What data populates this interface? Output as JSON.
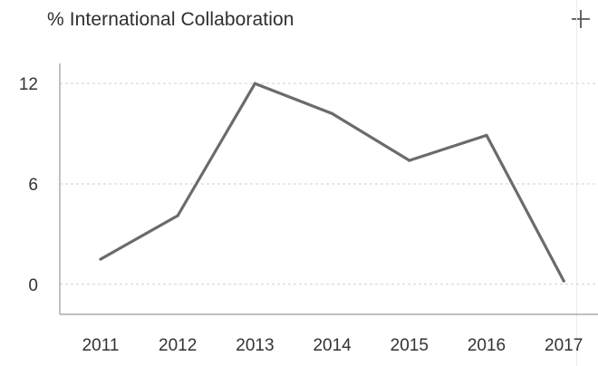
{
  "chart_data": {
    "type": "line",
    "title": "% International Collaboration",
    "x": [
      "2011",
      "2012",
      "2013",
      "2014",
      "2015",
      "2016",
      "2017"
    ],
    "series": [
      {
        "values": [
          1.5,
          4.1,
          12.0,
          10.2,
          7.4,
          8.9,
          0.2
        ]
      }
    ],
    "yticks": [
      0,
      6,
      12
    ],
    "ylim": [
      -1.8,
      13.2
    ],
    "grid": true,
    "line_color": "#6b6b6b",
    "grid_color": "#cfcfcf"
  },
  "toolbar": {
    "add_icon": "plus-icon"
  }
}
